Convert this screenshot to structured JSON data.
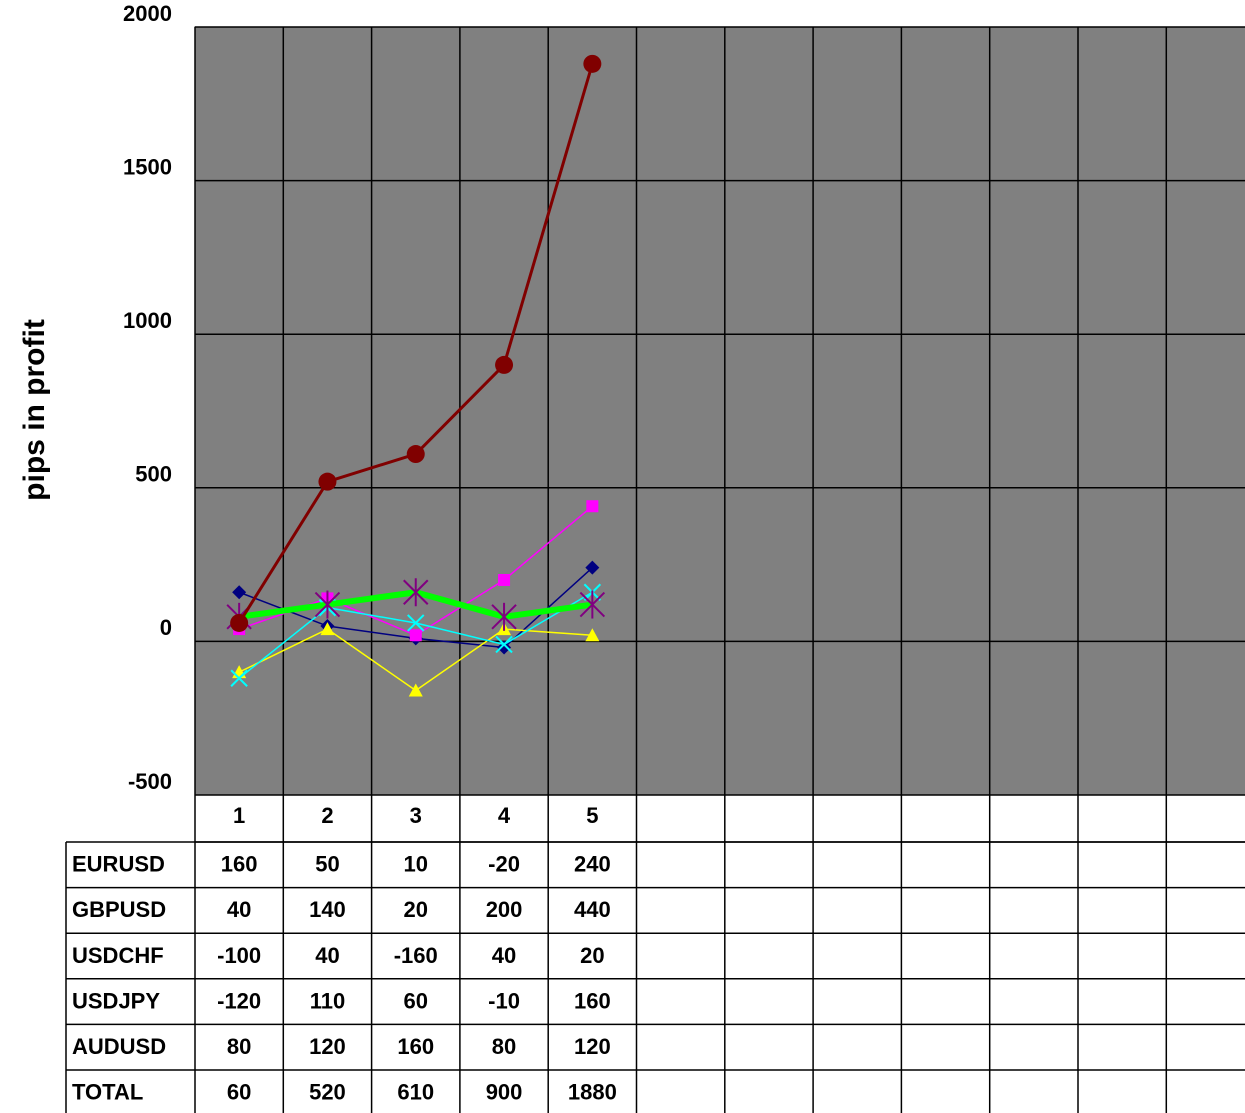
{
  "chart_data": {
    "type": "line",
    "ylabel": "pips in profit",
    "categories": [
      1,
      2,
      3,
      4,
      5,
      null,
      null,
      null,
      null,
      null,
      null,
      null
    ],
    "ylim": [
      -500,
      2000
    ],
    "yticks": [
      -500,
      0,
      500,
      1000,
      1500,
      2000
    ],
    "grid": true,
    "background": "#808080",
    "series": [
      {
        "name": "EURUSD",
        "color": "#000080",
        "marker": "diamond",
        "values": [
          160,
          50,
          10,
          -20,
          240,
          null,
          null,
          null,
          null,
          null,
          null,
          null
        ]
      },
      {
        "name": "GBPUSD",
        "color": "#ff00ff",
        "marker": "square",
        "values": [
          40,
          140,
          20,
          200,
          440,
          null,
          null,
          null,
          null,
          null,
          null,
          null
        ]
      },
      {
        "name": "USDCHF",
        "color": "#ffff00",
        "marker": "triangle",
        "values": [
          -100,
          40,
          -160,
          40,
          20,
          null,
          null,
          null,
          null,
          null,
          null,
          null
        ]
      },
      {
        "name": "USDJPY",
        "color": "#00ffff",
        "marker": "x",
        "values": [
          -120,
          110,
          60,
          -10,
          160,
          null,
          null,
          null,
          null,
          null,
          null,
          null
        ]
      },
      {
        "name": "AUDUSD",
        "color": "#00ff00",
        "marker": "star",
        "marker_color": "#800080",
        "line_width": 6,
        "values": [
          80,
          120,
          160,
          80,
          120,
          null,
          null,
          null,
          null,
          null,
          null,
          null
        ]
      },
      {
        "name": "TOTAL",
        "color": "#800000",
        "marker": "circle",
        "line_width": 3,
        "values": [
          60,
          520,
          610,
          900,
          1880,
          null,
          null,
          null,
          null,
          null,
          null,
          null
        ]
      }
    ]
  }
}
